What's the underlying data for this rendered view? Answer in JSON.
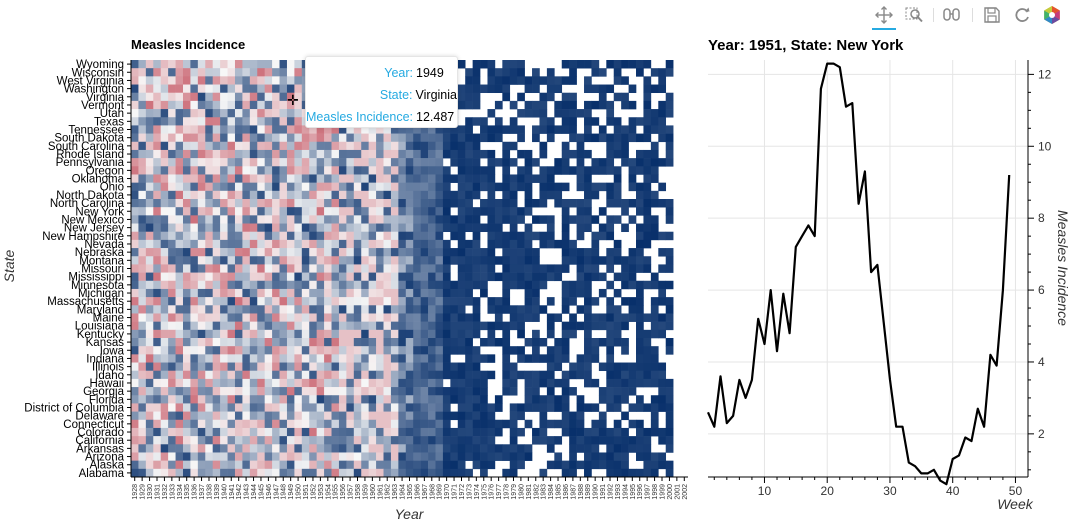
{
  "toolbar": {
    "tools": [
      {
        "name": "pan-tool",
        "icon": "pan-icon",
        "active": true
      },
      {
        "name": "box-zoom-tool",
        "icon": "box-zoom-icon",
        "active": false
      },
      {
        "name": "hover-tool",
        "icon": "hover-icon",
        "active": false
      },
      {
        "name": "save-tool",
        "icon": "save-icon",
        "active": false
      },
      {
        "name": "reset-tool",
        "icon": "reset-icon",
        "active": false
      },
      {
        "name": "bokeh-logo",
        "icon": "bokeh-logo-icon",
        "active": false
      }
    ]
  },
  "heatmap": {
    "title": "Measles Incidence",
    "xlabel": "Year",
    "ylabel": "State",
    "states": [
      "Wyoming",
      "Wisconsin",
      "West Virginia",
      "Washington",
      "Virginia",
      "Vermont",
      "Utah",
      "Texas",
      "Tennessee",
      "South Dakota",
      "South Carolina",
      "Rhode Island",
      "Pennsylvania",
      "Oregon",
      "Oklahoma",
      "Ohio",
      "North Dakota",
      "North Carolina",
      "New York",
      "New Mexico",
      "New Jersey",
      "New Hampshire",
      "Nevada",
      "Nebraska",
      "Montana",
      "Missouri",
      "Mississippi",
      "Minnesota",
      "Michigan",
      "Massachusetts",
      "Maryland",
      "Maine",
      "Louisiana",
      "Kentucky",
      "Kansas",
      "Iowa",
      "Indiana",
      "Illinois",
      "Idaho",
      "Hawaii",
      "Georgia",
      "Florida",
      "District of Columbia",
      "Delaware",
      "Connecticut",
      "Colorado",
      "California",
      "Arkansas",
      "Arizona",
      "Alaska",
      "Alabama"
    ],
    "years": [
      "1928",
      "1929",
      "1930",
      "1931",
      "1932",
      "1933",
      "1934",
      "1935",
      "1936",
      "1937",
      "1938",
      "1939",
      "1940",
      "1941",
      "1942",
      "1943",
      "1944",
      "1945",
      "1946",
      "1947",
      "1948",
      "1949",
      "1950",
      "1951",
      "1952",
      "1953",
      "1954",
      "1955",
      "1956",
      "1957",
      "1958",
      "1959",
      "1960",
      "1961",
      "1962",
      "1963",
      "1964",
      "1965",
      "1966",
      "1967",
      "1968",
      "1969",
      "1970",
      "1971",
      "1972",
      "1973",
      "1974",
      "1975",
      "1976",
      "1977",
      "1978",
      "1979",
      "1980",
      "1981",
      "1982",
      "1983",
      "1984",
      "1985",
      "1986",
      "1987",
      "1988",
      "1989",
      "1990",
      "1991",
      "1992",
      "1993",
      "1994",
      "1995",
      "1996",
      "1997",
      "1998",
      "1999",
      "2000",
      "2001",
      "2002"
    ],
    "tooltip": {
      "year_label": "Year:",
      "year_value": "1949",
      "state_label": "State:",
      "state_value": "Virginia",
      "incidence_label": "Measles Incidence:",
      "incidence_value": "12.487"
    },
    "colors": {
      "low": "#08306b",
      "mid": "#f7f7f7",
      "high": "#b2182b"
    }
  },
  "chart_data": {
    "type": "line",
    "title": "Year: 1951, State: New York",
    "xlabel": "Week",
    "ylabel": "Measles Incidence",
    "xlim": [
      1,
      52
    ],
    "ylim": [
      0.8,
      12.4
    ],
    "xticks": [
      10,
      20,
      30,
      40,
      50
    ],
    "yticks": [
      2,
      4,
      6,
      8,
      10,
      12
    ],
    "grid": true,
    "color": "#000000",
    "x": [
      1,
      2,
      3,
      4,
      5,
      6,
      7,
      8,
      9,
      10,
      11,
      12,
      13,
      14,
      15,
      16,
      17,
      18,
      19,
      20,
      21,
      22,
      23,
      24,
      25,
      26,
      27,
      28,
      29,
      30,
      31,
      32,
      33,
      34,
      35,
      36,
      37,
      38,
      39,
      40,
      41,
      42,
      43,
      44,
      45,
      46,
      47,
      48,
      49
    ],
    "y": [
      2.6,
      2.2,
      3.6,
      2.3,
      2.5,
      3.5,
      3.0,
      3.5,
      5.2,
      4.5,
      6.0,
      4.3,
      5.9,
      4.8,
      7.2,
      7.5,
      7.8,
      7.5,
      11.6,
      12.3,
      12.3,
      12.2,
      11.1,
      11.2,
      8.4,
      9.3,
      6.5,
      6.7,
      5.1,
      3.5,
      2.2,
      2.2,
      1.2,
      1.1,
      0.9,
      0.9,
      1.0,
      0.7,
      0.6,
      1.3,
      1.4,
      1.9,
      1.8,
      2.7,
      2.2,
      4.2,
      3.9,
      6.0,
      9.2
    ]
  }
}
